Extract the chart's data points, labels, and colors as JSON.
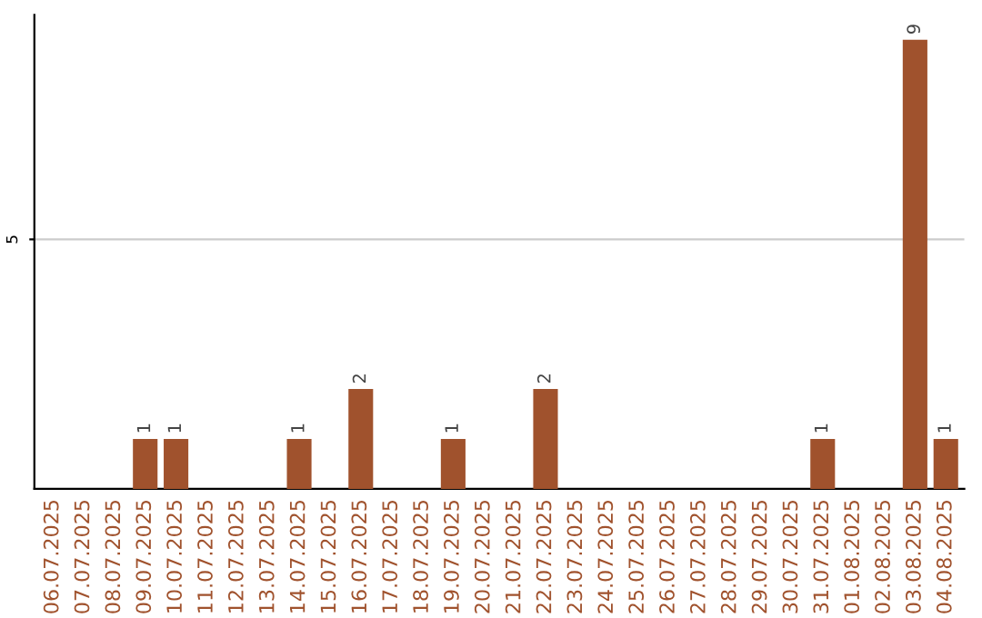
{
  "chart_data": {
    "type": "bar",
    "categories": [
      "06.07.2025",
      "07.07.2025",
      "08.07.2025",
      "09.07.2025",
      "10.07.2025",
      "11.07.2025",
      "12.07.2025",
      "13.07.2025",
      "14.07.2025",
      "15.07.2025",
      "16.07.2025",
      "17.07.2025",
      "18.07.2025",
      "19.07.2025",
      "20.07.2025",
      "21.07.2025",
      "22.07.2025",
      "23.07.2025",
      "24.07.2025",
      "25.07.2025",
      "26.07.2025",
      "27.07.2025",
      "28.07.2025",
      "29.07.2025",
      "30.07.2025",
      "31.07.2025",
      "01.08.2025",
      "02.08.2025",
      "03.08.2025",
      "04.08.2025"
    ],
    "values": [
      0,
      0,
      0,
      1,
      1,
      0,
      0,
      0,
      1,
      0,
      2,
      0,
      0,
      1,
      0,
      0,
      2,
      0,
      0,
      0,
      0,
      0,
      0,
      0,
      0,
      1,
      0,
      0,
      9,
      1
    ],
    "value_labels": [
      null,
      null,
      null,
      "1",
      "1",
      null,
      null,
      null,
      "1",
      null,
      "2",
      null,
      null,
      "1",
      null,
      null,
      "2",
      null,
      null,
      null,
      null,
      null,
      null,
      null,
      null,
      "1",
      null,
      null,
      "9",
      "1"
    ],
    "color": "#a0522d",
    "ylim": [
      0,
      9.5
    ],
    "yticks": [
      5
    ],
    "grid": "y",
    "legend": false
  }
}
